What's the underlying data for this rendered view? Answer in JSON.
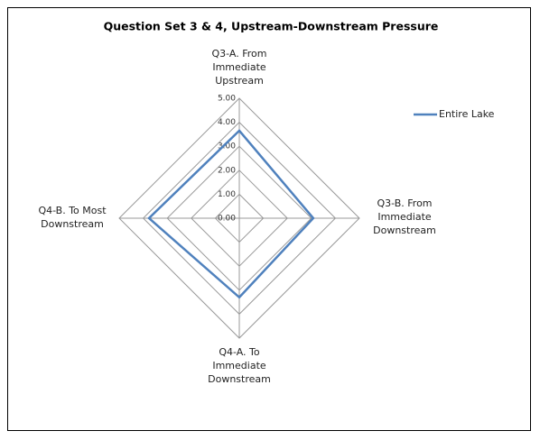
{
  "chart_data": {
    "type": "radar",
    "title": "Question Set 3 & 4, Upstream-Downstream Pressure",
    "categories": [
      "Q3-A. From\nImmediate\nUpstream",
      "Q3-B. From\nImmediate\nDownstream",
      "Q4-A. To\nImmediate\nDownstream",
      "Q4-B. To Most\nDownstream"
    ],
    "series": [
      {
        "name": "Entire Lake",
        "color": "#4f81bd",
        "values": [
          3.65,
          3.08,
          3.3,
          3.76
        ]
      }
    ],
    "ylim": [
      0,
      5
    ],
    "yticks": [
      {
        "value": 0,
        "label": "0.00"
      },
      {
        "value": 1,
        "label": "1.00"
      },
      {
        "value": 2,
        "label": "2.00"
      },
      {
        "value": 3,
        "label": "3.00"
      },
      {
        "value": 4,
        "label": "4.00"
      },
      {
        "value": 5,
        "label": "5.00"
      }
    ],
    "grid": true,
    "legend": "right"
  }
}
